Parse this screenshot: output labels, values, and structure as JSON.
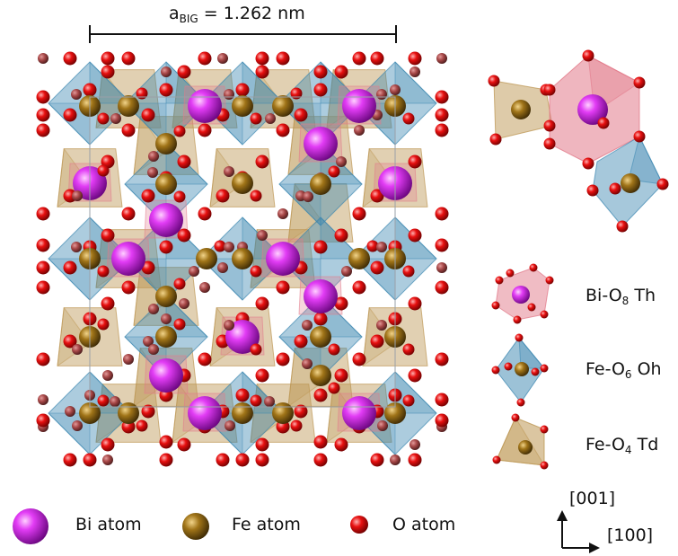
{
  "lattice": {
    "label_main": "a",
    "label_sub": "BIG",
    "label_value": "= 1.262 nm"
  },
  "polyhedra_legend": [
    {
      "name": "Bi-O",
      "sub": "8",
      "suffix": " Th"
    },
    {
      "name": "Fe-O",
      "sub": "6",
      "suffix": " Oh"
    },
    {
      "name": "Fe-O",
      "sub": "4",
      "suffix": " Td"
    }
  ],
  "atom_legend": [
    "Bi atom",
    "Fe atom",
    "O atom"
  ],
  "axes": {
    "vertical": "[001]",
    "horizontal": "[100]"
  },
  "colors": {
    "bi": "#c21ee0",
    "fe": "#8a6310",
    "o": "#e00d0d",
    "octa": "#3a86b0",
    "tetra": "#bd9754",
    "bi_poly": "#e27a8a"
  }
}
